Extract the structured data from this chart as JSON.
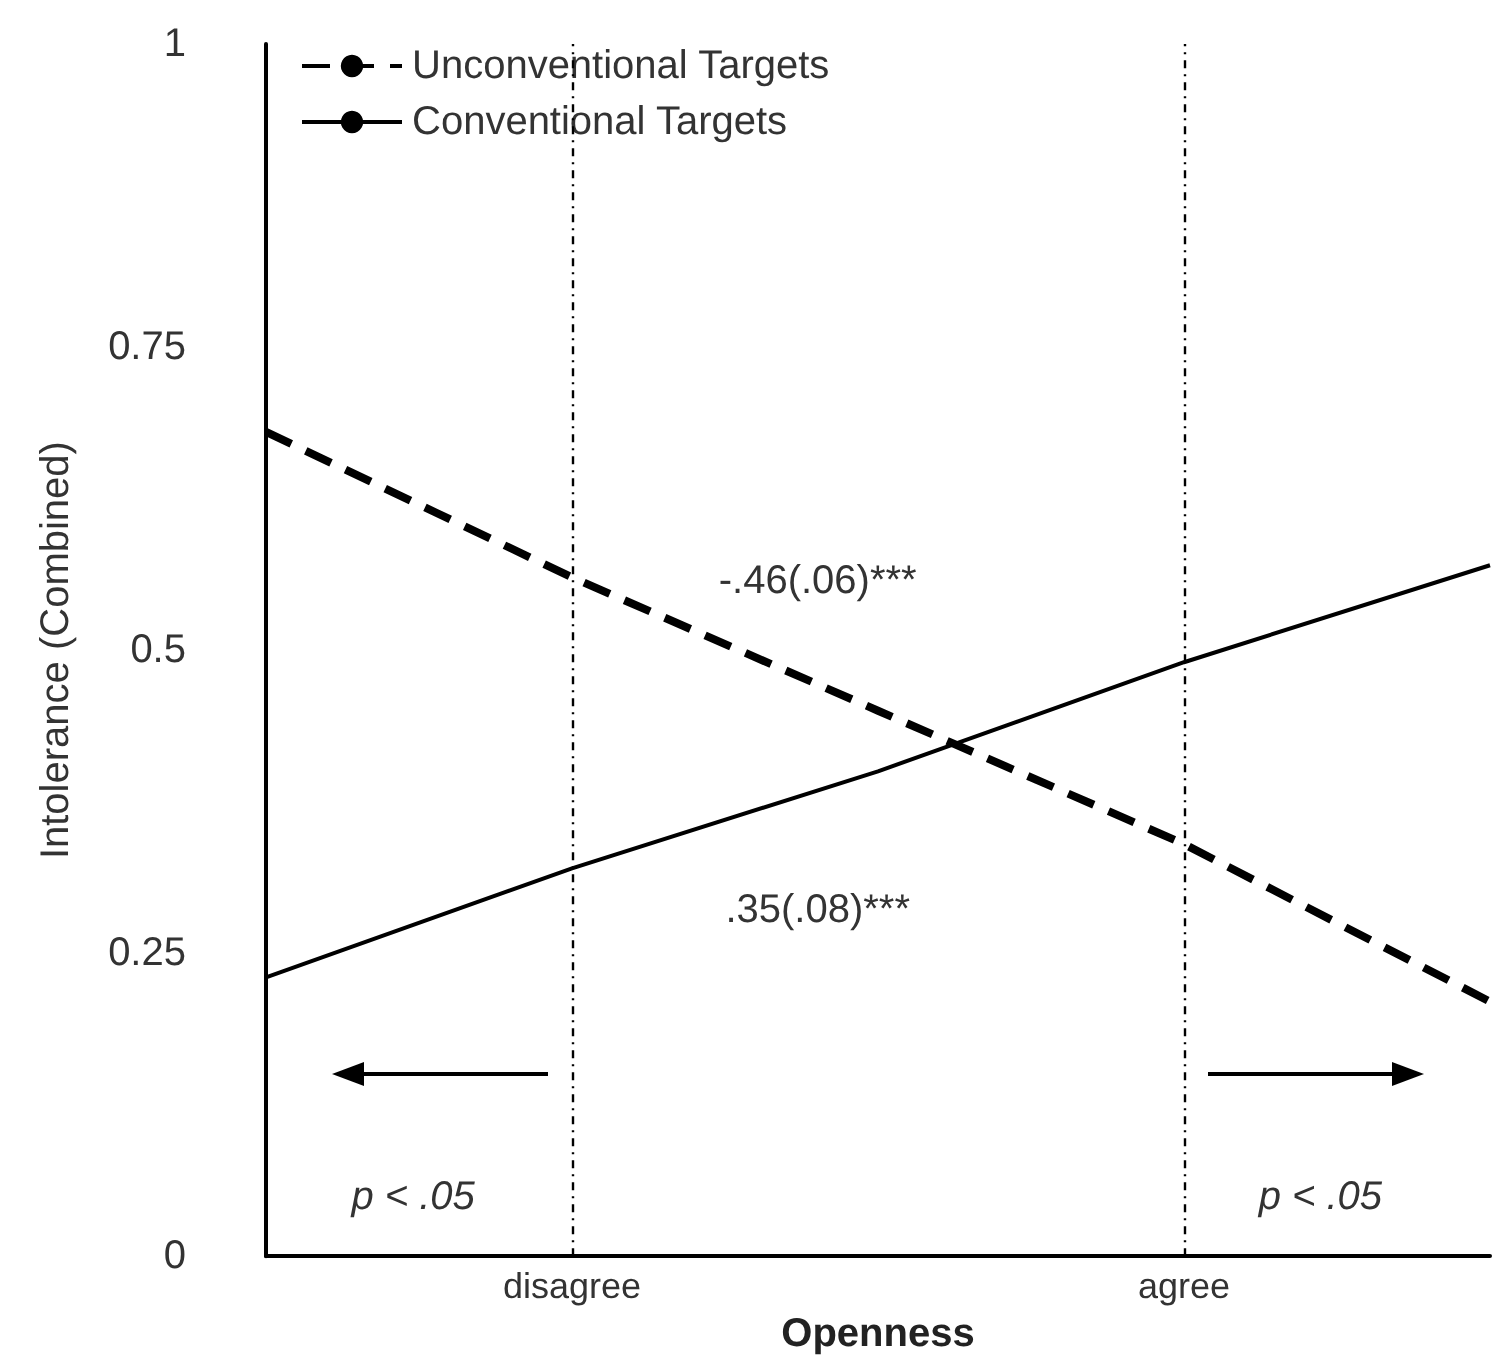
{
  "chart_data": {
    "type": "line",
    "xlabel": "Openness",
    "ylabel": "Intolerance (Combined)",
    "categories": [
      null,
      "disagree",
      null,
      "agree",
      null
    ],
    "series": [
      {
        "name": "Unconventional Targets",
        "color": "#000000",
        "values": [
          0.68,
          0.56,
          0.45,
          0.34,
          0.21
        ],
        "line_style": "dashed"
      },
      {
        "name": "Conventional Targets",
        "color": "#000000",
        "values": [
          0.23,
          0.32,
          0.4,
          0.49,
          0.57
        ],
        "line_style": "solid"
      }
    ],
    "ylim": [
      0,
      1
    ],
    "yticks": [
      0,
      0.25,
      0.5,
      0.75,
      1
    ],
    "ref_lines": [
      {
        "axis": "x",
        "value": "disagree",
        "label": null,
        "line_style": "dotted"
      },
      {
        "axis": "x",
        "value": "agree",
        "label": null,
        "line_style": "dotted"
      }
    ],
    "annotations": [
      "-.46(.06)***",
      ".35(.08)***",
      "p < .05",
      "p < .05"
    ],
    "grid": false,
    "legend": "top left",
    "marker": "none"
  }
}
